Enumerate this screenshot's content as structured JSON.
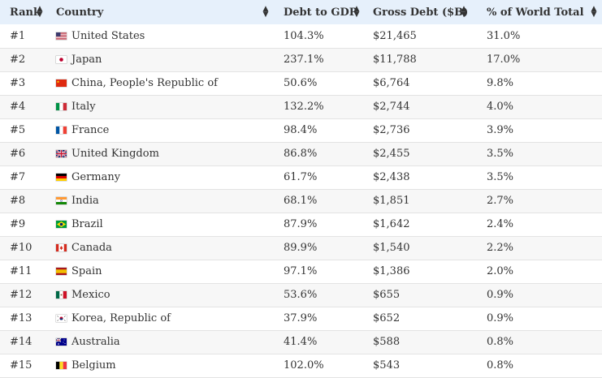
{
  "columns": {
    "rank": "Rank",
    "country": "Country",
    "debt_to_gdp": "Debt to GDP",
    "gross_debt": "Gross Debt ($B)",
    "world_share": "% of World Total"
  },
  "rows": [
    {
      "rank": "#1",
      "flag": "us-flag-icon",
      "country": "United States",
      "debt_to_gdp": "104.3%",
      "gross_debt": "$21,465",
      "world_share": "31.0%"
    },
    {
      "rank": "#2",
      "flag": "jp-flag-icon",
      "country": "Japan",
      "debt_to_gdp": "237.1%",
      "gross_debt": "$11,788",
      "world_share": "17.0%"
    },
    {
      "rank": "#3",
      "flag": "cn-flag-icon",
      "country": "China, People's Republic of",
      "debt_to_gdp": "50.6%",
      "gross_debt": "$6,764",
      "world_share": "9.8%"
    },
    {
      "rank": "#4",
      "flag": "it-flag-icon",
      "country": "Italy",
      "debt_to_gdp": "132.2%",
      "gross_debt": "$2,744",
      "world_share": "4.0%"
    },
    {
      "rank": "#5",
      "flag": "fr-flag-icon",
      "country": "France",
      "debt_to_gdp": "98.4%",
      "gross_debt": "$2,736",
      "world_share": "3.9%"
    },
    {
      "rank": "#6",
      "flag": "gb-flag-icon",
      "country": "United Kingdom",
      "debt_to_gdp": "86.8%",
      "gross_debt": "$2,455",
      "world_share": "3.5%"
    },
    {
      "rank": "#7",
      "flag": "de-flag-icon",
      "country": "Germany",
      "debt_to_gdp": "61.7%",
      "gross_debt": "$2,438",
      "world_share": "3.5%"
    },
    {
      "rank": "#8",
      "flag": "in-flag-icon",
      "country": "India",
      "debt_to_gdp": "68.1%",
      "gross_debt": "$1,851",
      "world_share": "2.7%"
    },
    {
      "rank": "#9",
      "flag": "br-flag-icon",
      "country": "Brazil",
      "debt_to_gdp": "87.9%",
      "gross_debt": "$1,642",
      "world_share": "2.4%"
    },
    {
      "rank": "#10",
      "flag": "ca-flag-icon",
      "country": "Canada",
      "debt_to_gdp": "89.9%",
      "gross_debt": "$1,540",
      "world_share": "2.2%"
    },
    {
      "rank": "#11",
      "flag": "es-flag-icon",
      "country": "Spain",
      "debt_to_gdp": "97.1%",
      "gross_debt": "$1,386",
      "world_share": "2.0%"
    },
    {
      "rank": "#12",
      "flag": "mx-flag-icon",
      "country": "Mexico",
      "debt_to_gdp": "53.6%",
      "gross_debt": "$655",
      "world_share": "0.9%"
    },
    {
      "rank": "#13",
      "flag": "kr-flag-icon",
      "country": "Korea, Republic of",
      "debt_to_gdp": "37.9%",
      "gross_debt": "$652",
      "world_share": "0.9%"
    },
    {
      "rank": "#14",
      "flag": "au-flag-icon",
      "country": "Australia",
      "debt_to_gdp": "41.4%",
      "gross_debt": "$588",
      "world_share": "0.8%"
    },
    {
      "rank": "#15",
      "flag": "be-flag-icon",
      "country": "Belgium",
      "debt_to_gdp": "102.0%",
      "gross_debt": "$543",
      "world_share": "0.8%"
    }
  ],
  "colors": {
    "header_bg": "#e6f0fb",
    "row_alt_bg": "#f7f7f7",
    "row_border": "#e3e3e3",
    "text": "#333333"
  }
}
